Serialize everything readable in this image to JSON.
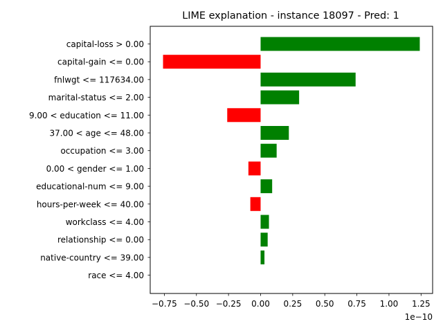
{
  "chart_data": {
    "type": "bar",
    "orientation": "horizontal",
    "title": "LIME explanation - instance 18097 - Pred: 1",
    "xlabel": "",
    "ylabel": "",
    "x_scale_label": "1e−10",
    "xlim": [
      -0.86,
      1.34
    ],
    "xticks": [
      -0.75,
      -0.5,
      -0.25,
      0.0,
      0.25,
      0.5,
      0.75,
      1.0,
      1.25
    ],
    "xtick_labels": [
      "−0.75",
      "−0.50",
      "−0.25",
      "0.00",
      "0.25",
      "0.50",
      "0.75",
      "1.00",
      "1.25"
    ],
    "grid": false,
    "legend": "none",
    "colors": {
      "positive": "#008000",
      "negative": "#ff0000"
    },
    "categories": [
      "capital-loss > 0.00",
      "capital-gain <= 0.00",
      "fnlwgt <= 117634.00",
      "marital-status <= 2.00",
      "9.00 < education <= 11.00",
      "37.00 < age <= 48.00",
      "occupation <= 3.00",
      "0.00 < gender <= 1.00",
      "educational-num <= 9.00",
      "hours-per-week <= 40.00",
      "workclass <= 4.00",
      "relationship <= 0.00",
      "native-country <= 39.00",
      "race <= 4.00"
    ],
    "values": [
      1.24,
      -0.76,
      0.74,
      0.3,
      -0.26,
      0.22,
      0.125,
      -0.095,
      0.09,
      -0.08,
      0.065,
      0.055,
      0.03,
      0.0
    ]
  }
}
